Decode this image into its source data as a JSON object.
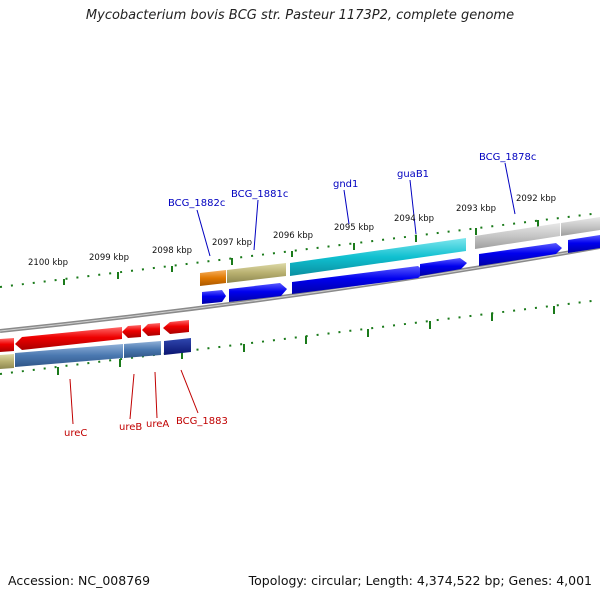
{
  "title": "Mycobacterium bovis BCG str. Pasteur 1173P2, complete genome",
  "footer": {
    "accession": "Accession: NC_008769",
    "summary": "Topology: circular; Length: 4,374,522 bp; Genes: 4,001"
  },
  "scale_labels": {
    "outer": [
      "2100 kbp",
      "2099 kbp",
      "2098 kbp",
      "2097 kbp",
      "2096 kbp",
      "2095 kbp",
      "2094 kbp",
      "2093 kbp",
      "2092 kbp"
    ]
  },
  "gene_labels": {
    "plus_strand": [
      "BCG_1882c",
      "BCG_1881c",
      "gnd1",
      "guaB1",
      "BCG_1878c"
    ],
    "minus_strand": [
      "ureC",
      "ureB",
      "ureA",
      "BCG_1883"
    ]
  },
  "colors": {
    "plus_label": "#0000c0",
    "minus_label": "#c00000",
    "tick": "#1a7a1a",
    "backbone": "#8a8a8a",
    "arrow_blue": "#0000ee",
    "arrow_red": "#ee0000",
    "cog_orange": "#e07800",
    "cog_khaki": "#b8b070",
    "cog_cyan": "#10c0d0",
    "cog_gray": "#c0c0c0",
    "cog_steelblue": "#4a78b0",
    "cog_navy": "#0a1a80"
  }
}
